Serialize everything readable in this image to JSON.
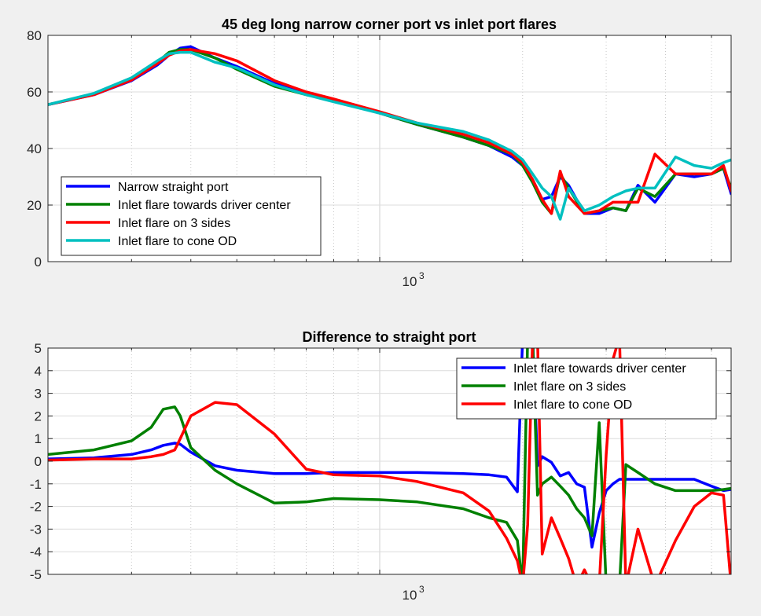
{
  "chart_data": [
    {
      "type": "line",
      "title": "45 deg long narrow corner port vs inlet port flares",
      "xscale": "log",
      "xlim": [
        200,
        5500
      ],
      "ylim": [
        0,
        80
      ],
      "yticks": [
        0,
        20,
        40,
        60,
        80
      ],
      "xtick_label": "10",
      "xtick_exponent": "3",
      "grid": "x-minor, y-major",
      "legend_position": "lower-left",
      "series": [
        {
          "name": "Narrow straight port",
          "color": "#0000ff",
          "x": [
            200,
            250,
            300,
            340,
            360,
            380,
            400,
            450,
            500,
            600,
            700,
            800,
            1000,
            1200,
            1500,
            1700,
            1900,
            2000,
            2100,
            2200,
            2300,
            2400,
            2500,
            2700,
            2900,
            3100,
            3300,
            3500,
            3800,
            4200,
            4600,
            5000,
            5300,
            5500
          ],
          "y": [
            55.5,
            59,
            64,
            69.5,
            73,
            75.5,
            76,
            72,
            69,
            63,
            59.5,
            57,
            52.5,
            48.5,
            44,
            41,
            37,
            34,
            29,
            22,
            23,
            30,
            27,
            17,
            17,
            19,
            18,
            27,
            21,
            31,
            30,
            31,
            33,
            24
          ]
        },
        {
          "name": "Inlet flare towards driver center",
          "color": "#008000",
          "x": [
            200,
            250,
            300,
            340,
            360,
            380,
            400,
            450,
            500,
            600,
            700,
            800,
            1000,
            1200,
            1500,
            1700,
            1900,
            2000,
            2100,
            2200,
            2300,
            2400,
            2500,
            2700,
            2900,
            3100,
            3300,
            3500,
            3800,
            4200,
            4600,
            5000,
            5300,
            5500
          ],
          "y": [
            55.5,
            59.3,
            64.7,
            70.5,
            74,
            75,
            75,
            72,
            68,
            62,
            59,
            57,
            52.5,
            48.5,
            44,
            41,
            38,
            34,
            28,
            21,
            17,
            31,
            26,
            17,
            18,
            19,
            18,
            26,
            23,
            31,
            31,
            31,
            33,
            26
          ]
        },
        {
          "name": "Inlet flare on 3 sides",
          "color": "#ff0000",
          "x": [
            200,
            250,
            300,
            340,
            360,
            380,
            400,
            450,
            500,
            600,
            700,
            800,
            1000,
            1200,
            1500,
            1700,
            1900,
            2000,
            2100,
            2200,
            2300,
            2400,
            2500,
            2700,
            2900,
            3100,
            3300,
            3500,
            3800,
            4200,
            4600,
            5000,
            5300,
            5500
          ],
          "y": [
            55.5,
            59,
            64.2,
            70,
            73,
            74.5,
            75,
            73.5,
            71,
            64,
            60,
            57.5,
            53,
            49,
            45,
            42,
            38,
            35,
            29,
            22,
            17,
            32,
            23,
            17,
            18,
            21,
            21,
            21,
            38,
            31,
            31,
            31,
            34,
            25
          ]
        },
        {
          "name": "Inlet flare to cone OD",
          "color": "#00c0c0",
          "x": [
            200,
            250,
            300,
            340,
            360,
            380,
            400,
            450,
            500,
            600,
            700,
            800,
            1000,
            1200,
            1500,
            1700,
            1900,
            2000,
            2100,
            2200,
            2300,
            2400,
            2500,
            2700,
            2900,
            3100,
            3300,
            3500,
            3800,
            4200,
            4600,
            5000,
            5300,
            5500
          ],
          "y": [
            55.5,
            59.5,
            65,
            71,
            73.5,
            74,
            74,
            70.5,
            68.5,
            62.5,
            59,
            56.5,
            52.5,
            49,
            46,
            43,
            39,
            36,
            31,
            26,
            23,
            15,
            26,
            18,
            20,
            23,
            25,
            26,
            26,
            37,
            34,
            33,
            35,
            36
          ]
        }
      ]
    },
    {
      "type": "line",
      "title": "Difference to straight port",
      "xscale": "log",
      "xlim": [
        200,
        5500
      ],
      "ylim": [
        -5,
        5
      ],
      "yticks": [
        -5,
        -4,
        -3,
        -2,
        -1,
        0,
        1,
        2,
        3,
        4,
        5
      ],
      "xtick_label": "10",
      "xtick_exponent": "3",
      "grid": "x-minor, y-major",
      "legend_position": "top-right",
      "series": [
        {
          "name": "Inlet flare towards driver center",
          "color": "#0000ff",
          "x": [
            200,
            250,
            300,
            330,
            350,
            370,
            380,
            400,
            450,
            500,
            600,
            700,
            800,
            1000,
            1200,
            1500,
            1700,
            1850,
            1950,
            2000,
            2050,
            2100,
            2150,
            2200,
            2300,
            2400,
            2500,
            2600,
            2700,
            2800,
            2900,
            3000,
            3100,
            3200,
            3300,
            3500,
            3800,
            4200,
            4600,
            5000,
            5300,
            5500
          ],
          "y": [
            0.1,
            0.15,
            0.3,
            0.5,
            0.7,
            0.8,
            0.75,
            0.4,
            -0.2,
            -0.4,
            -0.55,
            -0.55,
            -0.5,
            -0.5,
            -0.5,
            -0.55,
            -0.6,
            -0.7,
            -1.35,
            5.5,
            5.5,
            5.5,
            -0.2,
            0.2,
            -0.05,
            -0.65,
            -0.5,
            -1.0,
            -1.15,
            -3.8,
            -2.3,
            -1.3,
            -1.0,
            -0.8,
            -0.8,
            -0.8,
            -0.8,
            -0.8,
            -0.8,
            -1.1,
            -1.3,
            -1.25
          ]
        },
        {
          "name": "Inlet flare on 3 sides",
          "color": "#008000",
          "x": [
            200,
            250,
            300,
            330,
            350,
            370,
            380,
            400,
            450,
            500,
            600,
            700,
            800,
            1000,
            1200,
            1500,
            1700,
            1850,
            1950,
            2000,
            2050,
            2100,
            2150,
            2200,
            2300,
            2400,
            2500,
            2600,
            2700,
            2800,
            2900,
            3000,
            3100,
            3200,
            3300,
            3500,
            3800,
            4200,
            4600,
            5000,
            5300,
            5500
          ],
          "y": [
            0.3,
            0.5,
            0.9,
            1.5,
            2.3,
            2.4,
            2.0,
            0.6,
            -0.4,
            -1.0,
            -1.85,
            -1.8,
            -1.65,
            -1.7,
            -1.8,
            -2.1,
            -2.5,
            -2.7,
            -3.5,
            -5.5,
            5.5,
            5.5,
            -1.5,
            -1.0,
            -0.7,
            -1.1,
            -1.5,
            -2.1,
            -2.5,
            -3.3,
            1.7,
            -5.5,
            -5.5,
            -5.5,
            -0.15,
            -0.5,
            -1.0,
            -1.3,
            -1.3,
            -1.3,
            -1.25,
            -1.2
          ]
        },
        {
          "name": "Inlet flare to cone OD",
          "color": "#ff0000",
          "x": [
            200,
            250,
            300,
            330,
            350,
            370,
            380,
            400,
            450,
            500,
            600,
            700,
            800,
            1000,
            1200,
            1500,
            1700,
            1850,
            1950,
            2000,
            2050,
            2100,
            2150,
            2200,
            2300,
            2400,
            2500,
            2600,
            2700,
            2800,
            2900,
            3000,
            3100,
            3200,
            3300,
            3500,
            3800,
            4200,
            4600,
            5000,
            5300,
            5500
          ],
          "y": [
            0.05,
            0.1,
            0.1,
            0.2,
            0.3,
            0.5,
            1.0,
            2.0,
            2.6,
            2.5,
            1.2,
            -0.35,
            -0.6,
            -0.65,
            -0.9,
            -1.4,
            -2.2,
            -3.4,
            -4.4,
            -5.5,
            -2.8,
            5.5,
            5.5,
            -4.1,
            -2.5,
            -3.4,
            -4.3,
            -5.5,
            -4.8,
            -5.5,
            -5.5,
            0.3,
            4.5,
            5.5,
            -5.5,
            -3.0,
            -5.5,
            -3.5,
            -2.0,
            -1.4,
            -1.5,
            -5.5
          ]
        }
      ]
    }
  ]
}
